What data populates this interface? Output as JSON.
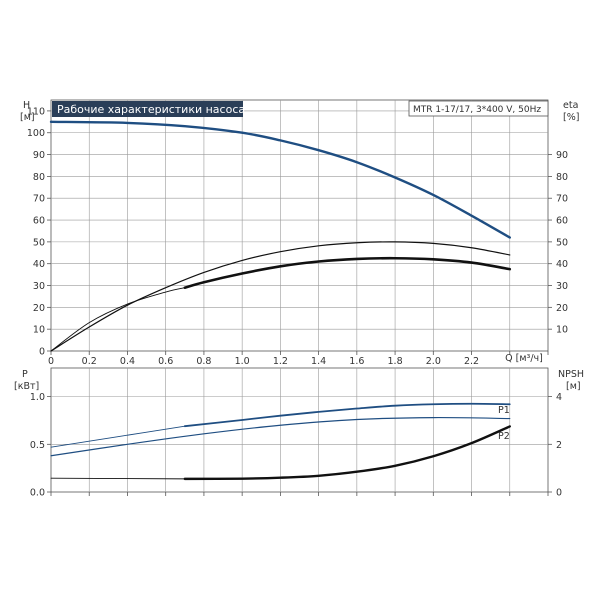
{
  "chart_data": [
    {
      "type": "line",
      "title": "Рабочие характеристики насоса",
      "info_box": "MTR 1-17/17, 3*400 V, 50Hz",
      "ylabel": "H",
      "ylabel_unit": "[м]",
      "y2label": "eta",
      "y2label_unit": "[%]",
      "xlabel": "Q [м³/ч]",
      "xlim": [
        0,
        2.6
      ],
      "ylim": [
        0,
        115
      ],
      "y2lim": [
        0,
        115
      ],
      "x_ticks": [
        "0",
        "0.2",
        "0.4",
        "0.6",
        "0.8",
        "1.0",
        "1.2",
        "1.4",
        "1.6",
        "1.8",
        "2.0",
        "2.2"
      ],
      "y_ticks": [
        "0",
        "10",
        "20",
        "30",
        "40",
        "50",
        "60",
        "70",
        "80",
        "90",
        "100",
        "110"
      ],
      "y2_ticks": [
        "10",
        "20",
        "30",
        "40",
        "50",
        "60",
        "70",
        "80",
        "90"
      ],
      "grid": true,
      "series": [
        {
          "id": "H-curve",
          "role": "head",
          "color": "#1f4e82",
          "width": 2.4,
          "x": [
            0,
            0.4,
            0.7,
            1.0,
            1.2,
            1.4,
            1.6,
            1.8,
            2.0,
            2.2,
            2.4
          ],
          "y": [
            105,
            104.5,
            103,
            100,
            96.5,
            92,
            86.5,
            79.5,
            71.5,
            62,
            52
          ]
        },
        {
          "id": "H-curve-thin",
          "role": "head",
          "color": "#1f4e82",
          "width": 1,
          "x": [
            0,
            0.3,
            0.7
          ],
          "y": [
            105,
            104.8,
            103
          ]
        },
        {
          "id": "eta-upper",
          "role": "eta",
          "color": "#111111",
          "width": 1.2,
          "x": [
            0,
            0.2,
            0.4,
            0.6,
            0.8,
            1.0,
            1.2,
            1.4,
            1.6,
            1.8,
            2.0,
            2.2,
            2.4
          ],
          "y": [
            0,
            11,
            21,
            29,
            36,
            41.5,
            45.5,
            48.2,
            49.6,
            50,
            49.3,
            47.3,
            44
          ]
        },
        {
          "id": "eta-lower-thin",
          "role": "eta",
          "color": "#111111",
          "width": 0.9,
          "x": [
            0,
            0.2,
            0.4,
            0.6,
            0.7
          ],
          "y": [
            0,
            13,
            21.5,
            27,
            29
          ]
        },
        {
          "id": "eta-lower",
          "role": "eta",
          "color": "#111111",
          "width": 2.6,
          "x": [
            0.7,
            0.8,
            1.0,
            1.2,
            1.4,
            1.6,
            1.8,
            2.0,
            2.2,
            2.4
          ],
          "y": [
            29,
            31.5,
            35.5,
            38.8,
            41,
            42.2,
            42.5,
            42,
            40.5,
            37.5
          ]
        }
      ]
    },
    {
      "type": "line",
      "ylabel": "P",
      "ylabel_unit": "[кВт]",
      "y2label": "NPSH",
      "y2label_unit": "[м]",
      "xlim": [
        0,
        2.6
      ],
      "ylim": [
        0,
        1.3
      ],
      "y2lim": [
        0,
        5.2
      ],
      "y_ticks": [
        "0.0",
        "0.5",
        "1.0"
      ],
      "y2_ticks": [
        "0",
        "2",
        "4"
      ],
      "grid": true,
      "series": [
        {
          "id": "P1",
          "name": "P1",
          "axis": "left",
          "color": "#1f4e82",
          "width": 1.8,
          "x": [
            0.7,
            1.0,
            1.2,
            1.4,
            1.6,
            1.8,
            2.0,
            2.2,
            2.4
          ],
          "y": [
            0.69,
            0.755,
            0.8,
            0.84,
            0.875,
            0.905,
            0.92,
            0.925,
            0.92
          ]
        },
        {
          "id": "P1-thin",
          "axis": "left",
          "color": "#1f4e82",
          "width": 0.9,
          "x": [
            0,
            0.35,
            0.7
          ],
          "y": [
            0.47,
            0.58,
            0.69
          ]
        },
        {
          "id": "P2",
          "name": "P2",
          "axis": "left",
          "color": "#1f4e82",
          "width": 1.2,
          "x": [
            0,
            0.4,
            0.8,
            1.2,
            1.6,
            2.0,
            2.4
          ],
          "y": [
            0.38,
            0.5,
            0.61,
            0.7,
            0.76,
            0.78,
            0.77
          ]
        },
        {
          "id": "NPSH",
          "axis": "right",
          "color": "#111111",
          "width": 2.4,
          "x": [
            0.7,
            1.0,
            1.2,
            1.4,
            1.6,
            1.8,
            2.0,
            2.2,
            2.4
          ],
          "y": [
            0.55,
            0.56,
            0.6,
            0.68,
            0.85,
            1.1,
            1.5,
            2.05,
            2.75
          ]
        },
        {
          "id": "NPSH-thin",
          "axis": "right",
          "color": "#111111",
          "width": 0.9,
          "x": [
            0,
            0.7
          ],
          "y": [
            0.58,
            0.55
          ]
        }
      ]
    }
  ]
}
